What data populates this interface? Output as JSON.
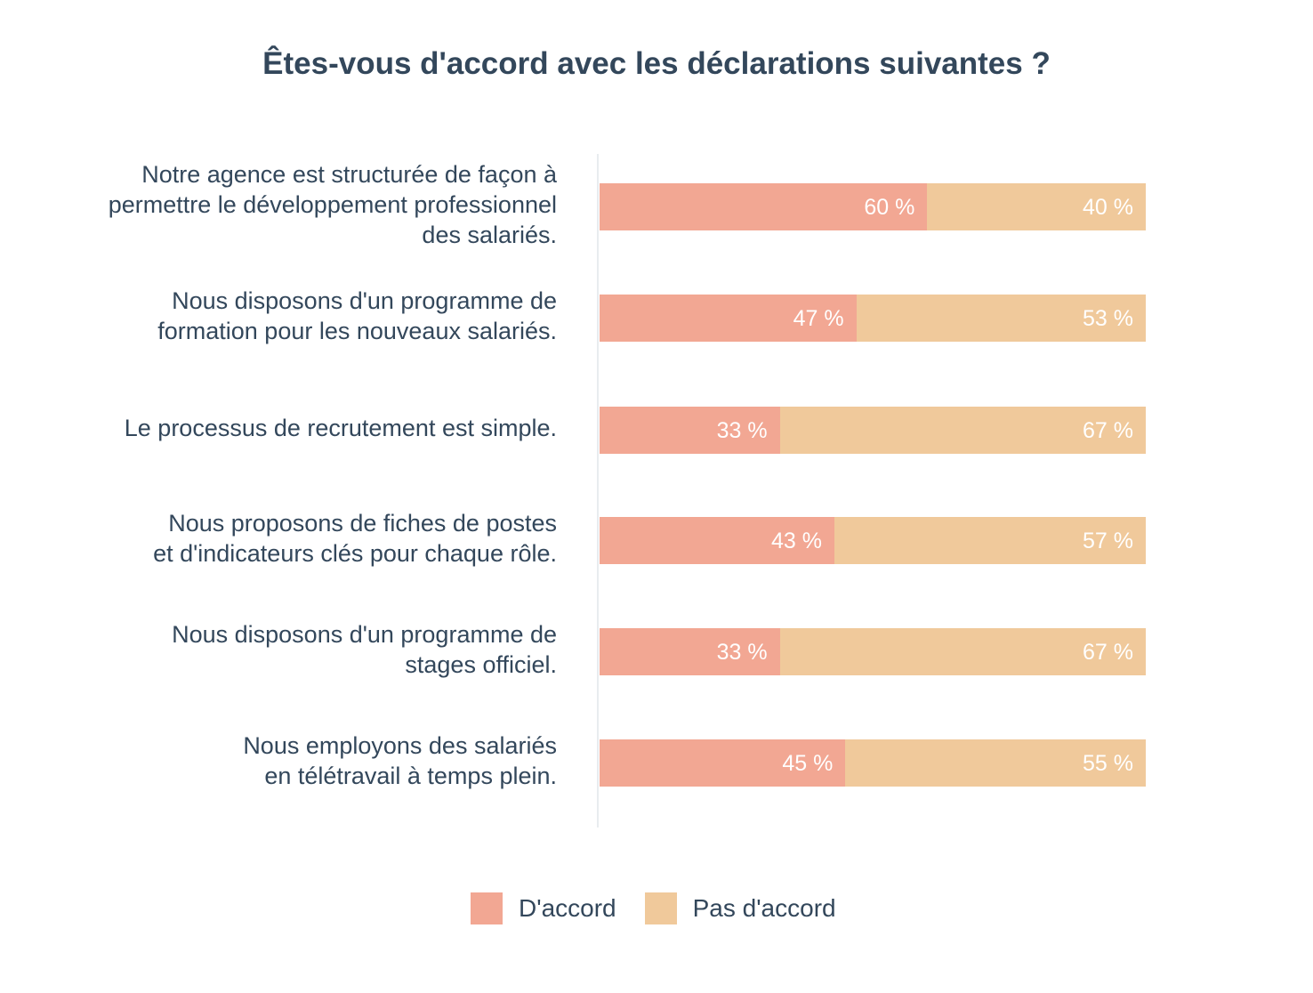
{
  "chart_data": {
    "type": "bar",
    "orientation": "horizontal",
    "stacked": true,
    "title": "Êtes-vous d'accord avec les déclarations suivantes ?",
    "categories": [
      [
        "Notre agence est structurée de façon à",
        "permettre le développement professionnel",
        "des salariés."
      ],
      [
        "Nous disposons d'un programme de",
        "formation pour les nouveaux salariés."
      ],
      [
        "Le processus de recrutement est simple."
      ],
      [
        "Nous proposons de fiches de postes",
        "et d'indicateurs clés pour chaque rôle."
      ],
      [
        "Nous disposons d'un programme de",
        "stages officiel."
      ],
      [
        "Nous employons des salariés",
        "en télétravail à temps plein."
      ]
    ],
    "series": [
      {
        "name": "D'accord",
        "color": "#f2a793",
        "values": [
          60,
          47,
          33,
          43,
          33,
          45
        ]
      },
      {
        "name": "Pas d'accord",
        "color": "#f0c99b",
        "values": [
          40,
          53,
          67,
          57,
          67,
          55
        ]
      }
    ],
    "value_suffix": " %",
    "xlim": [
      0,
      100
    ],
    "legend": "bottom"
  }
}
